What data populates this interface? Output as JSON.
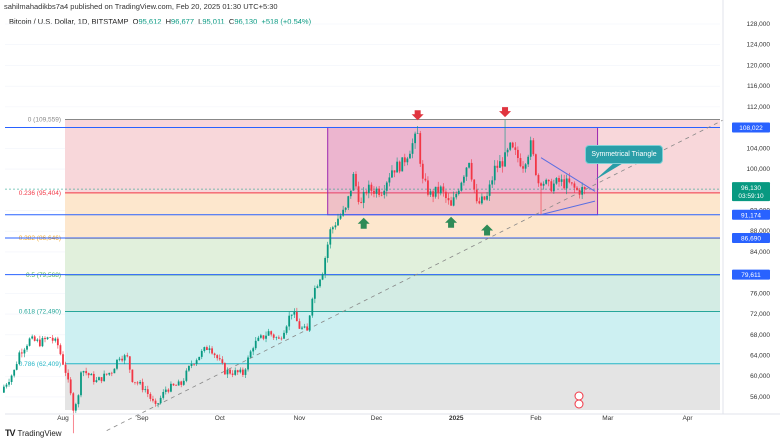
{
  "published": "sahilmahadikbs7a4 published on TradingView.com, Feb 20, 2025 01:30 UTC+5:30",
  "symbol": "Bitcoin / U.S. Dollar, 1D, BITSTAMP",
  "ohlc": {
    "o_label": "O",
    "o": "95,612",
    "h_label": "H",
    "h": "96,677",
    "l_label": "L",
    "l": "95,011",
    "c_label": "C",
    "c": "96,130",
    "change": "+518 (+0.54%)"
  },
  "footer_brand": "TradingView",
  "annotation": "Symmetrical Triangle",
  "countdown": "03:59:10",
  "colors": {
    "up": "#089981",
    "down": "#f23645",
    "level_line": "#2962ff",
    "box": "#9c27b0",
    "triangle": "#5b6ee1"
  },
  "chart_data": {
    "type": "candlestick",
    "title": "Bitcoin / U.S. Dollar, 1D, BITSTAMP",
    "ylim": [
      49000,
      130000
    ],
    "y_ticks": [
      128000,
      124000,
      120000,
      116000,
      112000,
      104000,
      100000,
      92000,
      88000,
      84000,
      76000,
      72000,
      68000,
      64000,
      60000,
      56000
    ],
    "y_tick_labels": [
      "128,000",
      "124,000",
      "120,000",
      "116,000",
      "112,000",
      "104,000",
      "100,000",
      "92,000",
      "88,000",
      "84,000",
      "76,000",
      "72,000",
      "68,000",
      "64,000",
      "60,000",
      "56,000"
    ],
    "x_ticks": [
      {
        "date": "2024-08-01",
        "label": "Aug"
      },
      {
        "date": "2024-09-01",
        "label": "Sep"
      },
      {
        "date": "2024-10-01",
        "label": "Oct"
      },
      {
        "date": "2024-11-01",
        "label": "Nov"
      },
      {
        "date": "2024-12-01",
        "label": "Dec"
      },
      {
        "date": "2025-01-01",
        "label": "2025"
      },
      {
        "date": "2025-02-01",
        "label": "Feb"
      },
      {
        "date": "2025-03-01",
        "label": "Mar"
      },
      {
        "date": "2025-04-01",
        "label": "Apr"
      }
    ],
    "close_keypoints": [
      [
        "2024-07-09",
        58000
      ],
      [
        "2024-07-13",
        61000
      ],
      [
        "2024-07-15",
        64500
      ],
      [
        "2024-07-19",
        67000
      ],
      [
        "2024-07-23",
        66500
      ],
      [
        "2024-07-27",
        67500
      ],
      [
        "2024-07-30",
        66000
      ],
      [
        "2024-08-02",
        61000
      ],
      [
        "2024-08-05",
        54000
      ],
      [
        "2024-08-07",
        56000
      ],
      [
        "2024-08-08",
        61500
      ],
      [
        "2024-08-14",
        59000
      ],
      [
        "2024-08-20",
        61000
      ],
      [
        "2024-08-23",
        64000
      ],
      [
        "2024-08-26",
        63500
      ],
      [
        "2024-08-28",
        59500
      ],
      [
        "2024-09-02",
        57500
      ],
      [
        "2024-09-06",
        54000
      ],
      [
        "2024-09-10",
        57500
      ],
      [
        "2024-09-16",
        58500
      ],
      [
        "2024-09-20",
        62500
      ],
      [
        "2024-09-27",
        66000
      ],
      [
        "2024-09-30",
        63500
      ],
      [
        "2024-10-03",
        61000
      ],
      [
        "2024-10-10",
        60500
      ],
      [
        "2024-10-14",
        66000
      ],
      [
        "2024-10-20",
        68500
      ],
      [
        "2024-10-24",
        67000
      ],
      [
        "2024-10-29",
        72500
      ],
      [
        "2024-11-01",
        69500
      ],
      [
        "2024-11-04",
        68500
      ],
      [
        "2024-11-06",
        75800
      ],
      [
        "2024-11-10",
        80500
      ],
      [
        "2024-11-13",
        88000
      ],
      [
        "2024-11-16",
        90500
      ],
      [
        "2024-11-19",
        92000
      ],
      [
        "2024-11-22",
        98500
      ],
      [
        "2024-11-25",
        93000
      ],
      [
        "2024-11-27",
        96000
      ],
      [
        "2024-12-03",
        96000
      ],
      [
        "2024-12-07",
        100000
      ],
      [
        "2024-12-11",
        101000
      ],
      [
        "2024-12-14",
        104000
      ],
      [
        "2024-12-17",
        106500
      ],
      [
        "2024-12-19",
        97500
      ],
      [
        "2024-12-22",
        95000
      ],
      [
        "2024-12-26",
        96000
      ],
      [
        "2024-12-30",
        92500
      ],
      [
        "2025-01-03",
        98000
      ],
      [
        "2025-01-06",
        102000
      ],
      [
        "2025-01-09",
        93000
      ],
      [
        "2025-01-13",
        94500
      ],
      [
        "2025-01-16",
        100000
      ],
      [
        "2025-01-20",
        102000
      ],
      [
        "2025-01-22",
        104000
      ],
      [
        "2025-01-27",
        101000
      ],
      [
        "2025-01-30",
        104500
      ],
      [
        "2025-02-02",
        97500
      ],
      [
        "2025-02-03",
        98000
      ],
      [
        "2025-02-06",
        96500
      ],
      [
        "2025-02-10",
        97500
      ],
      [
        "2025-02-14",
        97000
      ],
      [
        "2025-02-17",
        95800
      ],
      [
        "2025-02-20",
        96130
      ]
    ],
    "fib_levels": [
      {
        "ratio": 0,
        "price": 109559,
        "label": "0 (109,559)",
        "fill": "#f8d7da",
        "color": "#888888"
      },
      {
        "ratio": 0.236,
        "price": 95404,
        "label": "0.236 (95,404)",
        "fill": "#fde7cd",
        "color": "#f23645"
      },
      {
        "ratio": 0.382,
        "price": 86646,
        "label": "0.382 (86,646)",
        "fill": "#e1f0dc",
        "color": "#f5a623"
      },
      {
        "ratio": 0.5,
        "price": 79568,
        "label": "0.5 (79,568)",
        "fill": "#d3ece4",
        "color": "#4caf50"
      },
      {
        "ratio": 0.618,
        "price": 72490,
        "label": "0.618 (72,490)",
        "fill": "#cdf0f2",
        "color": "#26a69a"
      },
      {
        "ratio": 0.786,
        "price": 62409,
        "label": "0.786 (62,409)",
        "fill": "#e4e4e4",
        "color": "#26b6c6"
      }
    ],
    "horizontal_levels": [
      {
        "price": 108022,
        "label": "108,022"
      },
      {
        "price": 91174,
        "label": "91,174"
      },
      {
        "price": 86690,
        "label": "86,690"
      },
      {
        "price": 79611,
        "label": "79,611"
      }
    ],
    "last_price": {
      "price": 96130,
      "label": "96,130"
    },
    "range_box": {
      "from": "2024-11-12",
      "to": "2025-02-25",
      "top": 108022,
      "bottom": 91174
    },
    "resistance_markers": [
      [
        "2024-12-17",
        109800
      ],
      [
        "2025-01-20",
        110400
      ]
    ],
    "support_markers": [
      [
        "2024-11-26",
        90600
      ],
      [
        "2024-12-30",
        90800
      ],
      [
        "2025-01-13",
        89300
      ]
    ],
    "trendline": [
      [
        "2024-08-18",
        49500
      ],
      [
        "2025-04-15",
        109500
      ]
    ],
    "triangle": {
      "upper": [
        [
          "2025-02-03",
          102200
        ],
        [
          "2025-02-24",
          95700
        ]
      ],
      "lower": [
        [
          "2025-02-03",
          91200
        ],
        [
          "2025-02-24",
          93800
        ]
      ]
    },
    "highs": [
      [
        "2024-08-05",
        49000,
        "low"
      ],
      [
        "2024-12-17",
        108300,
        "high"
      ],
      [
        "2025-01-20",
        109500,
        "high"
      ],
      [
        "2025-02-03",
        91200,
        "low"
      ]
    ]
  }
}
